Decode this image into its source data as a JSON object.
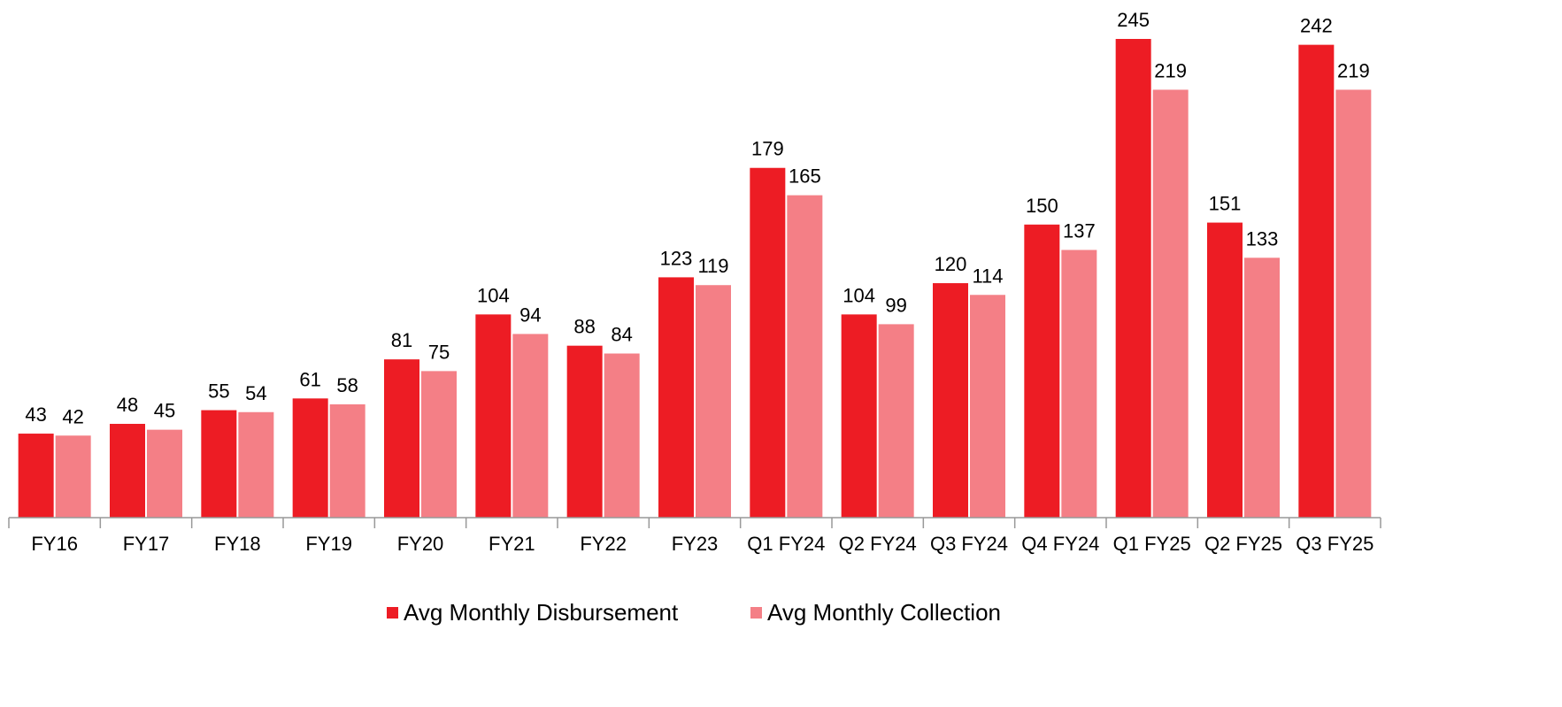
{
  "chart_data": {
    "type": "bar",
    "categories": [
      "FY16",
      "FY17",
      "FY18",
      "FY19",
      "FY20",
      "FY21",
      "FY22",
      "FY23",
      "Q1 FY24",
      "Q2 FY24",
      "Q3 FY24",
      "Q4 FY24",
      "Q1 FY25",
      "Q2 FY25",
      "Q3 FY25"
    ],
    "series": [
      {
        "name": "Avg Monthly Disbursement",
        "color": "#ed1c24",
        "values": [
          43,
          48,
          55,
          61,
          81,
          104,
          88,
          123,
          179,
          104,
          120,
          150,
          245,
          151,
          242
        ]
      },
      {
        "name": "Avg Monthly Collection",
        "color": "#f47f86",
        "values": [
          42,
          45,
          54,
          58,
          75,
          94,
          84,
          119,
          165,
          99,
          114,
          137,
          219,
          133,
          219
        ]
      }
    ],
    "legend": "bottom"
  }
}
